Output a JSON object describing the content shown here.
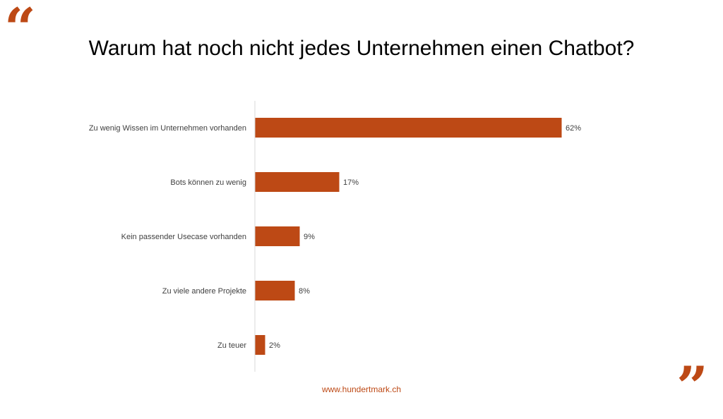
{
  "slide": {
    "title": "Warum hat noch nicht jedes Unternehmen einen Chatbot?",
    "footer": "www.hundertmark.ch",
    "open_quote": "“",
    "close_quote": "”",
    "accent_color": "#bd4915"
  },
  "chart_data": {
    "type": "bar",
    "orientation": "horizontal",
    "title": "Warum hat noch nicht jedes Unternehmen einen Chatbot?",
    "categories": [
      "Zu wenig Wissen im Unternehmen vorhanden",
      "Bots können zu wenig",
      "Kein passender Usecase vorhanden",
      "Zu viele andere Projekte",
      "Zu teuer"
    ],
    "values": [
      62,
      17,
      9,
      8,
      2
    ],
    "labels": [
      "62%",
      "17%",
      "9%",
      "8%",
      "2%"
    ],
    "unit": "%",
    "xlabel": "",
    "ylabel": "",
    "xlim": [
      0,
      100
    ],
    "grid": false,
    "color": "#bd4915"
  }
}
